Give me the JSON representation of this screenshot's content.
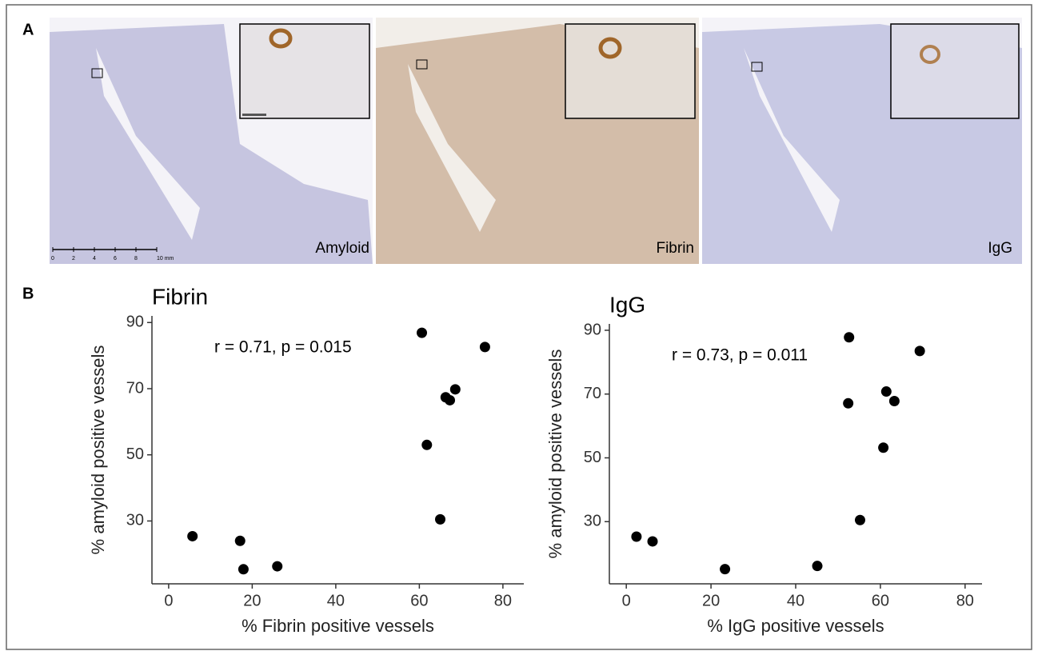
{
  "panel_a": {
    "letter": "A",
    "image_labels": [
      "Amyloid",
      "Fibrin",
      "IgG"
    ],
    "scale_bar_labels": [
      "0",
      "2",
      "4",
      "6",
      "8",
      "10 mm"
    ]
  },
  "panel_b": {
    "letter": "B"
  },
  "chart_data": [
    {
      "type": "scatter",
      "title": "Fibrin",
      "x_label": "% Fibrin positive vessels",
      "y_label": "% amyloid positive vessels",
      "annotation": "r = 0.71, p = 0.015",
      "color": "#000000",
      "x": [
        5.7,
        17.1,
        17.9,
        26.0,
        60.6,
        61.8,
        65.0,
        66.3,
        67.3,
        68.6,
        75.7
      ],
      "values": [
        25.4,
        24.0,
        15.4,
        16.3,
        86.9,
        53.0,
        30.5,
        67.4,
        66.5,
        69.8,
        82.6
      ],
      "xlim": [
        -4,
        85
      ],
      "ylim": [
        11,
        92
      ],
      "xticks": [
        0,
        20,
        40,
        60,
        80
      ],
      "yticks": [
        30,
        50,
        70,
        90
      ],
      "grid": false
    },
    {
      "type": "scatter",
      "title": "IgG",
      "x_label": "% IgG positive vessels",
      "y_label": "% amyloid positive vessels",
      "annotation": "r = 0.73, p = 0.011",
      "color": "#000000",
      "x": [
        2.4,
        6.2,
        23.3,
        45.1,
        52.6,
        52.4,
        55.2,
        60.7,
        61.4,
        63.3,
        69.3
      ],
      "values": [
        25.3,
        23.8,
        15.1,
        16.1,
        87.8,
        67.1,
        30.5,
        53.2,
        70.8,
        67.8,
        83.5
      ],
      "xlim": [
        -4,
        84
      ],
      "ylim": [
        10.5,
        92
      ],
      "xticks": [
        0,
        20,
        40,
        60,
        80
      ],
      "yticks": [
        30,
        50,
        70,
        90
      ],
      "grid": false
    }
  ]
}
